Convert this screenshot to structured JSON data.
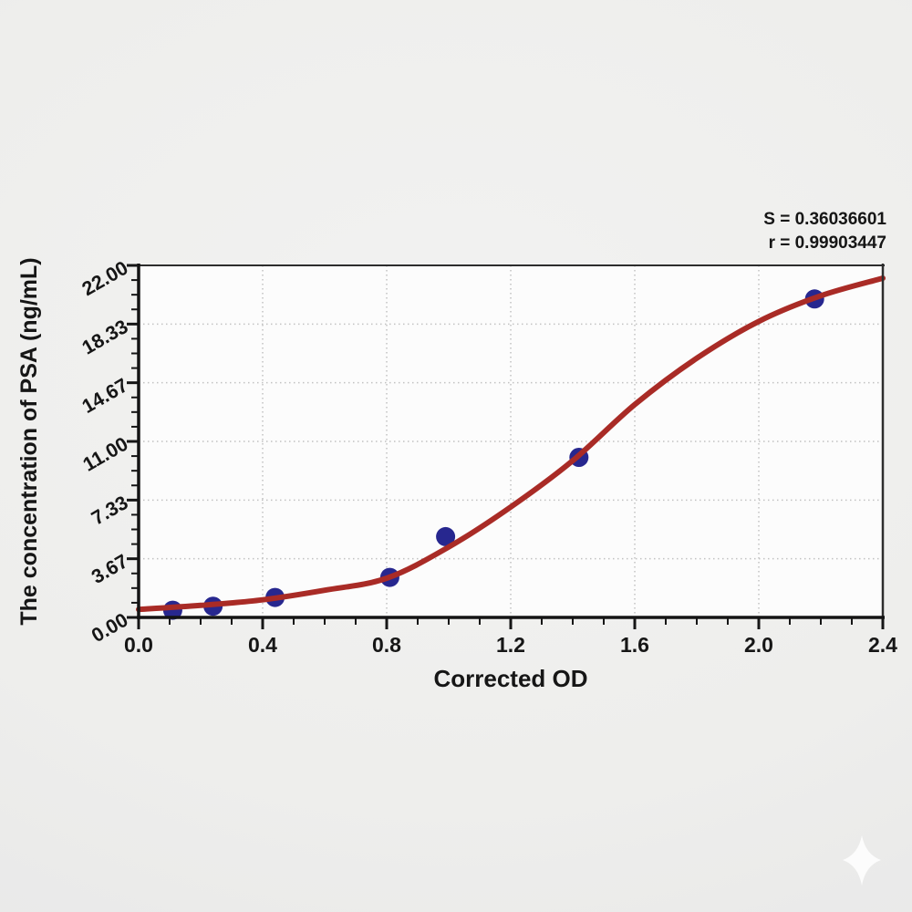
{
  "page": {
    "background_color": "#ececea",
    "plot_background_color": "#fcfcfc"
  },
  "chart_data": {
    "type": "scatter",
    "title": "",
    "xlabel": "Corrected OD",
    "ylabel": "The concentration of PSA (ng/mL)",
    "xlim": [
      0,
      2.4
    ],
    "ylim": [
      0,
      22
    ],
    "xticks": [
      0.0,
      0.4,
      0.8,
      1.2,
      1.6,
      2.0,
      2.4
    ],
    "xtick_labels": [
      "0.0",
      "0.4",
      "0.8",
      "1.2",
      "1.6",
      "2.0",
      "2.4"
    ],
    "yticks": [
      0,
      3.6667,
      7.3333,
      11,
      14.6667,
      18.3333,
      22
    ],
    "ytick_labels": [
      "0.00",
      "3.67",
      "7.33",
      "11.00",
      "14.67",
      "18.33",
      "22.00"
    ],
    "x_minor_step": 0.1,
    "y_minors_between_majors": 3,
    "grid": "dotted-at-major-ticks",
    "legend": "none",
    "annotations": {
      "s": "S = 0.36036601",
      "r": "r = 0.99903447"
    },
    "series": [
      {
        "name": "standard-points",
        "type": "scatter",
        "color": "#27278f",
        "marker": "circle",
        "points": [
          [
            0.11,
            0.45
          ],
          [
            0.24,
            0.7
          ],
          [
            0.44,
            1.25
          ],
          [
            0.81,
            2.5
          ],
          [
            0.99,
            5.05
          ],
          [
            1.42,
            10.0
          ],
          [
            2.18,
            19.9
          ]
        ]
      },
      {
        "name": "fitted-curve",
        "type": "line",
        "color": "#a92b26",
        "points": [
          [
            0.0,
            0.5
          ],
          [
            0.2,
            0.75
          ],
          [
            0.4,
            1.1
          ],
          [
            0.6,
            1.7
          ],
          [
            0.8,
            2.45
          ],
          [
            1.0,
            4.4
          ],
          [
            1.2,
            6.9
          ],
          [
            1.4,
            9.8
          ],
          [
            1.6,
            13.3
          ],
          [
            1.8,
            16.2
          ],
          [
            2.0,
            18.5
          ],
          [
            2.2,
            20.1
          ],
          [
            2.4,
            21.2
          ]
        ]
      }
    ]
  },
  "watermark": {
    "name": "sparkle-star",
    "color": "#ffffff"
  }
}
